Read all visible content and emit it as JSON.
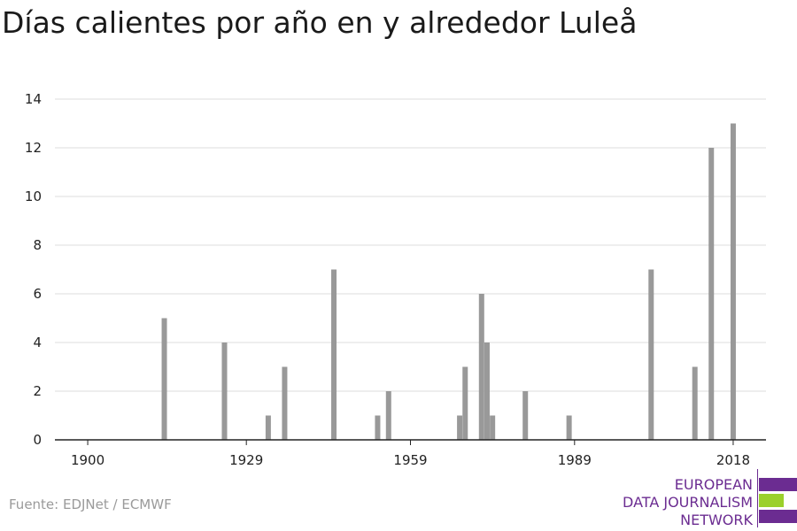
{
  "title": "Días calientes por año en y alrededor Luleå",
  "source": "Fuente: EDJNet / ECMWF",
  "logo": {
    "line1": "EUROPEAN",
    "line2": "DATA JOURNALISM",
    "line3": "NETWORK",
    "colors": {
      "purple": "#6b2c91",
      "green": "#9bd02c"
    }
  },
  "colors": {
    "bar": "#999999",
    "grid": "#dcdcdc",
    "axis": "#222222"
  },
  "chart_data": {
    "type": "bar",
    "title": "Días calientes por año en y alrededor Luleå",
    "xlabel": "",
    "ylabel": "",
    "xlim": [
      1894,
      2024
    ],
    "ylim": [
      0,
      14
    ],
    "x_ticks": [
      1900,
      1929,
      1959,
      1989,
      2018
    ],
    "y_ticks": [
      0,
      2,
      4,
      6,
      8,
      10,
      12,
      14
    ],
    "grid": true,
    "x": [
      1914,
      1925,
      1933,
      1936,
      1945,
      1953,
      1955,
      1968,
      1969,
      1972,
      1973,
      1974,
      1980,
      1988,
      2003,
      2011,
      2014,
      2018
    ],
    "values": [
      5,
      4,
      1,
      3,
      7,
      1,
      2,
      1,
      3,
      6,
      4,
      1,
      2,
      1,
      7,
      3,
      12,
      13
    ]
  }
}
